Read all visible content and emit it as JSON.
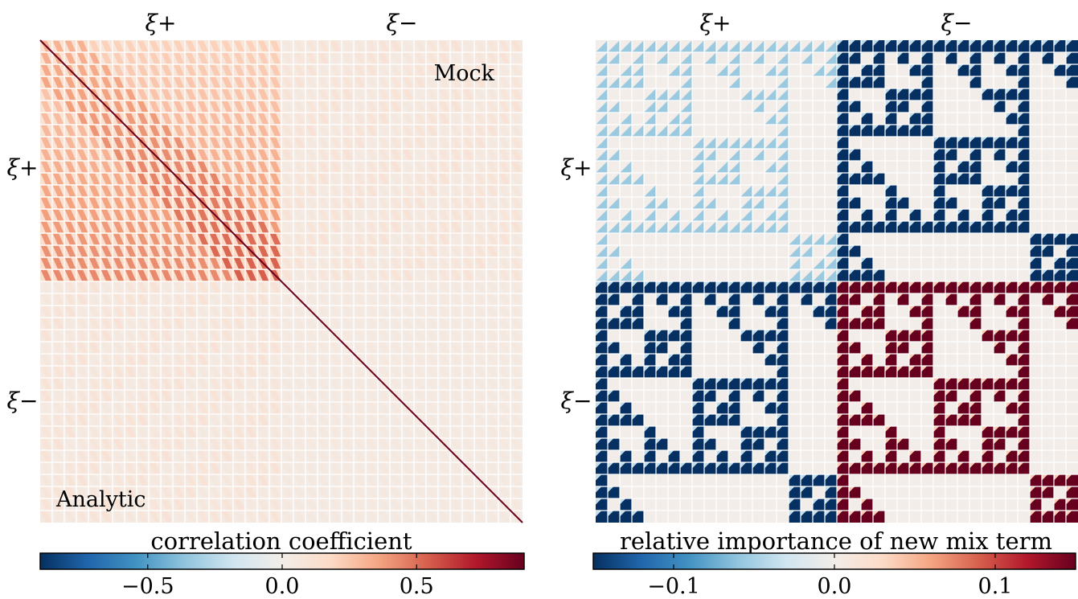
{
  "chart_data": [
    {
      "type": "heatmap",
      "title": "",
      "block_labels": [
        "ξ+",
        "ξ−"
      ],
      "annotations": {
        "upper_right": "Mock",
        "lower_left": "Analytic"
      },
      "grid": true,
      "tiles_per_side": 40,
      "colorbar": {
        "label": "correlation coefficient",
        "range": [
          -0.9,
          0.9
        ],
        "ticks": [
          -0.5,
          0.0,
          0.5
        ],
        "tick_labels": [
          "−0.5",
          "0.0",
          "0.5"
        ],
        "colormap": [
          "#053061",
          "#2166ac",
          "#4393c3",
          "#92c5de",
          "#d1e5f0",
          "#f2ede8",
          "#fddbc7",
          "#f4a582",
          "#d6604d",
          "#b2182b",
          "#67001f"
        ]
      },
      "block_values": {
        "plus_plus_max": 0.6,
        "minus_minus_max": 0.15,
        "cross_max": 0.12,
        "diagonal": 1.0
      }
    },
    {
      "type": "heatmap",
      "title": "",
      "block_labels": [
        "ξ+",
        "ξ−"
      ],
      "grid": true,
      "tiles_per_side": 40,
      "colorbar": {
        "label": "relative importance of new mix term",
        "range": [
          -0.15,
          0.15
        ],
        "ticks": [
          -0.1,
          0.0,
          0.1
        ],
        "tick_labels": [
          "−0.1",
          "0.0",
          "0.1"
        ],
        "colormap": [
          "#053061",
          "#2166ac",
          "#4393c3",
          "#92c5de",
          "#d1e5f0",
          "#f2ede8",
          "#fddbc7",
          "#f4a582",
          "#d6604d",
          "#b2182b",
          "#67001f"
        ]
      },
      "block_values": {
        "plus_plus": -0.04,
        "plus_minus": -0.15,
        "minus_plus": -0.15,
        "minus_minus": 0.15
      }
    }
  ]
}
